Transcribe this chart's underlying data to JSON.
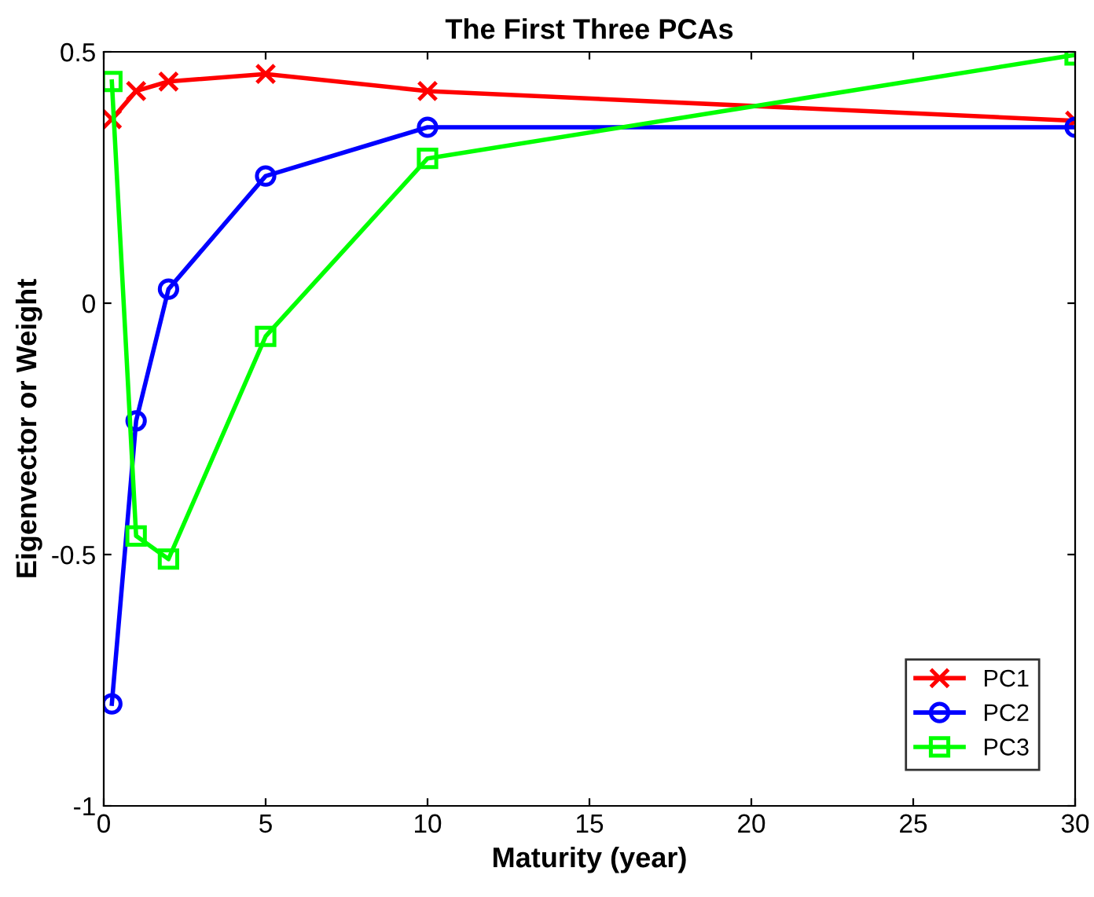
{
  "chart_data": {
    "type": "line",
    "title": "The First Three PCAs",
    "xlabel": "Maturity (year)",
    "ylabel": "Eigenvector or Weight",
    "x": [
      0.25,
      1,
      2,
      5,
      10,
      30
    ],
    "series": [
      {
        "name": "PC1",
        "color": "#ff0000",
        "marker": "cross",
        "values": [
          0.366,
          0.422,
          0.441,
          0.456,
          0.422,
          0.363
        ]
      },
      {
        "name": "PC2",
        "color": "#0000ff",
        "marker": "circle",
        "values": [
          -0.797,
          -0.234,
          0.028,
          0.253,
          0.35,
          0.35
        ]
      },
      {
        "name": "PC3",
        "color": "#00ff00",
        "marker": "square",
        "values": [
          0.441,
          -0.463,
          -0.509,
          -0.066,
          0.288,
          0.494
        ]
      }
    ],
    "xlim": [
      0,
      30
    ],
    "xticks": [
      0,
      5,
      10,
      15,
      20,
      25,
      30
    ],
    "ylim": [
      -1,
      0.5
    ],
    "yticks": [
      -1,
      -0.5,
      0,
      0.5
    ],
    "grid": false,
    "legend": "bottom right",
    "line_style": "solid"
  }
}
